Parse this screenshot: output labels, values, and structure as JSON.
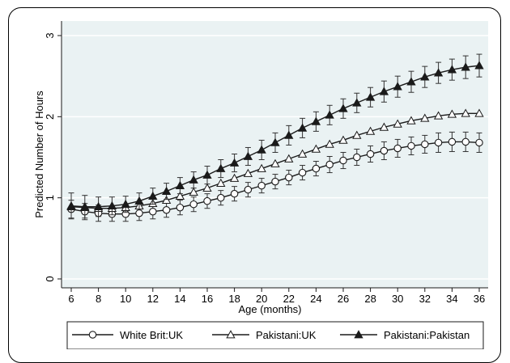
{
  "chart_data": {
    "type": "line",
    "title": "",
    "xlabel": "Age (months)",
    "ylabel": "Predicted Number of Hours",
    "xlim": [
      6,
      36
    ],
    "ylim": [
      0,
      3
    ],
    "x_ticks": [
      6,
      8,
      10,
      12,
      14,
      16,
      18,
      20,
      22,
      24,
      26,
      28,
      30,
      32,
      34,
      36
    ],
    "y_ticks": [
      0,
      1,
      2,
      3
    ],
    "grid": "horizontal",
    "legend_position": "bottom",
    "x": [
      6,
      7,
      8,
      9,
      10,
      11,
      12,
      13,
      14,
      15,
      16,
      17,
      18,
      19,
      20,
      21,
      22,
      23,
      24,
      25,
      26,
      27,
      28,
      29,
      30,
      31,
      32,
      33,
      34,
      35,
      36
    ],
    "series": [
      {
        "name": "White Brit:UK",
        "marker": "circle-hollow",
        "values": [
          0.86,
          0.83,
          0.81,
          0.8,
          0.8,
          0.81,
          0.83,
          0.85,
          0.88,
          0.92,
          0.96,
          1.0,
          1.05,
          1.1,
          1.15,
          1.2,
          1.25,
          1.31,
          1.36,
          1.41,
          1.46,
          1.5,
          1.54,
          1.58,
          1.61,
          1.64,
          1.66,
          1.68,
          1.69,
          1.69,
          1.68
        ],
        "errors": [
          0.11,
          0.1,
          0.1,
          0.09,
          0.09,
          0.09,
          0.09,
          0.09,
          0.09,
          0.09,
          0.09,
          0.09,
          0.09,
          0.09,
          0.09,
          0.09,
          0.09,
          0.09,
          0.09,
          0.1,
          0.1,
          0.1,
          0.1,
          0.11,
          0.11,
          0.11,
          0.11,
          0.12,
          0.12,
          0.12,
          0.12
        ]
      },
      {
        "name": "Pakistani:UK",
        "marker": "triangle-hollow",
        "values": [
          0.89,
          0.88,
          0.87,
          0.87,
          0.88,
          0.9,
          0.93,
          0.97,
          1.02,
          1.07,
          1.12,
          1.18,
          1.24,
          1.3,
          1.36,
          1.42,
          1.48,
          1.54,
          1.6,
          1.66,
          1.71,
          1.77,
          1.82,
          1.87,
          1.91,
          1.95,
          1.98,
          2.01,
          2.03,
          2.04,
          2.04
        ]
      },
      {
        "name": "Pakistani:Pakistan",
        "marker": "triangle-filled",
        "values": [
          0.9,
          0.89,
          0.89,
          0.9,
          0.92,
          0.96,
          1.02,
          1.08,
          1.15,
          1.22,
          1.28,
          1.36,
          1.43,
          1.51,
          1.59,
          1.68,
          1.77,
          1.86,
          1.94,
          2.02,
          2.1,
          2.17,
          2.24,
          2.31,
          2.37,
          2.43,
          2.49,
          2.54,
          2.58,
          2.61,
          2.63
        ],
        "errors": [
          0.16,
          0.14,
          0.12,
          0.11,
          0.1,
          0.1,
          0.1,
          0.1,
          0.1,
          0.1,
          0.11,
          0.11,
          0.11,
          0.11,
          0.12,
          0.12,
          0.12,
          0.12,
          0.12,
          0.12,
          0.12,
          0.12,
          0.12,
          0.13,
          0.13,
          0.13,
          0.13,
          0.13,
          0.13,
          0.14,
          0.14
        ]
      }
    ],
    "plot_background": "#eaf2f3",
    "line_color": "#1a1a1a"
  }
}
